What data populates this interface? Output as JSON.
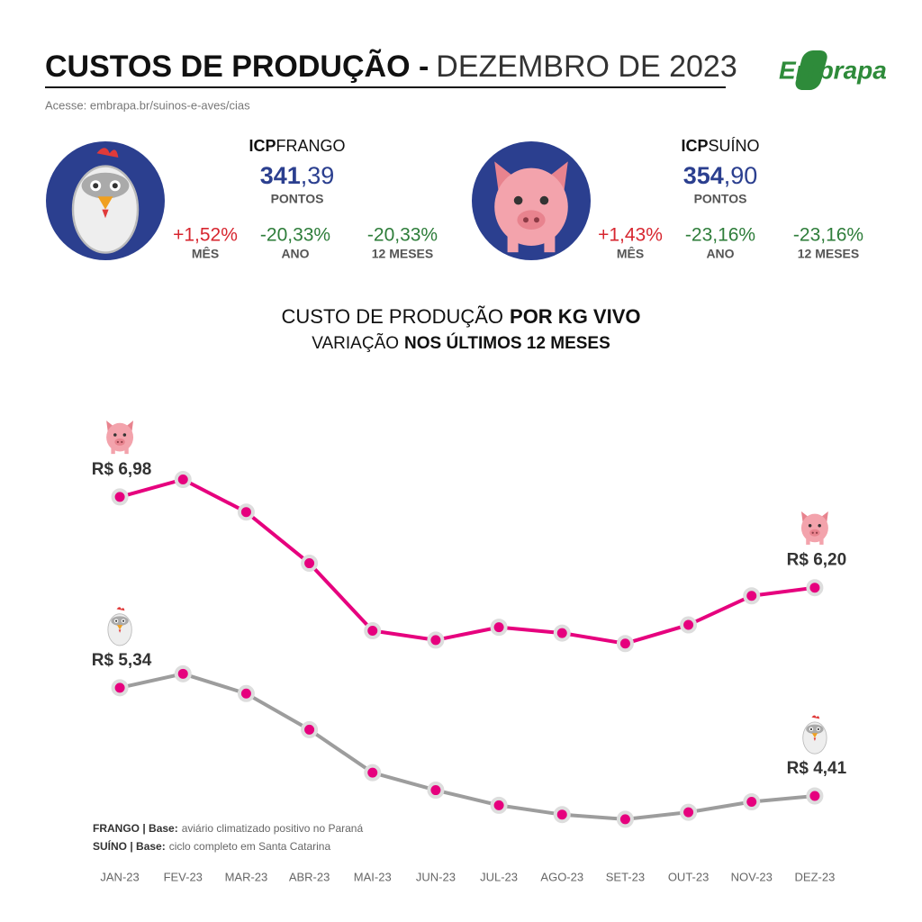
{
  "header": {
    "title_bold": "CUSTOS DE PRODUÇÃO -",
    "title_light": "DEZEMBRO DE 2023",
    "link": "Acesse: embrapa.br/suinos-e-aves/cias",
    "logo": "Embrapa"
  },
  "indices": [
    {
      "label_bold": "ICP",
      "label": "FRANGO",
      "points": "341",
      "points_decimal": ",39",
      "unit": "PONTOS",
      "stats": [
        {
          "value": "+1,52%",
          "label": "MÊS"
        },
        {
          "value": "-20,33%",
          "label": "ANO"
        },
        {
          "value": "-20,33%",
          "label": "12 MESES"
        }
      ]
    },
    {
      "label_bold": "ICP",
      "label": "SUÍNO",
      "points": "354",
      "points_decimal": ",90",
      "unit": "PONTOS",
      "stats": [
        {
          "value": "+1,43%",
          "label": "MÊS"
        },
        {
          "value": "-23,16%",
          "label": "ANO"
        },
        {
          "value": "-23,16%",
          "label": "12 MESES"
        }
      ]
    }
  ],
  "chart_data": {
    "type": "line",
    "title": "CUSTO DE PRODUÇÃO",
    "title_bold": "POR KG VIVO",
    "subtitle": "VARIAÇÃO",
    "subtitle_bold": "NOS ÚLTIMOS 12 MESES",
    "categories": [
      "JAN-23",
      "FEV-23",
      "MAR-23",
      "ABR-23",
      "MAI-23",
      "JUN-23",
      "JUL-23",
      "AGO-23",
      "SET-23",
      "OUT-23",
      "NOV-23",
      "DEZ-23"
    ],
    "ylim": [
      4,
      7.9
    ],
    "marker_color": "#e6007e",
    "series": [
      {
        "color": "#e6007e",
        "values": [
          6.98,
          7.13,
          6.85,
          6.41,
          5.83,
          5.75,
          5.86,
          5.81,
          5.72,
          5.88,
          6.13,
          6.2
        ],
        "value_labels": [
          "R$ 6,98",
          null,
          null,
          null,
          null,
          null,
          null,
          null,
          null,
          null,
          null,
          "R$ 6,20"
        ]
      },
      {
        "color": "#9d9d9d",
        "values": [
          5.34,
          5.46,
          5.29,
          4.98,
          4.61,
          4.46,
          4.33,
          4.25,
          4.21,
          4.27,
          4.36,
          4.41
        ],
        "value_labels": [
          "R$ 5,34",
          null,
          null,
          null,
          null,
          null,
          null,
          null,
          null,
          null,
          null,
          "R$ 4,41"
        ]
      }
    ]
  },
  "notes": [
    {
      "bold": "FRANGO | Base:",
      "text": "aviário climatizado positivo no Paraná"
    },
    {
      "bold": "SUÍNO | Base:",
      "text": "ciclo completo em Santa Catarina"
    }
  ]
}
